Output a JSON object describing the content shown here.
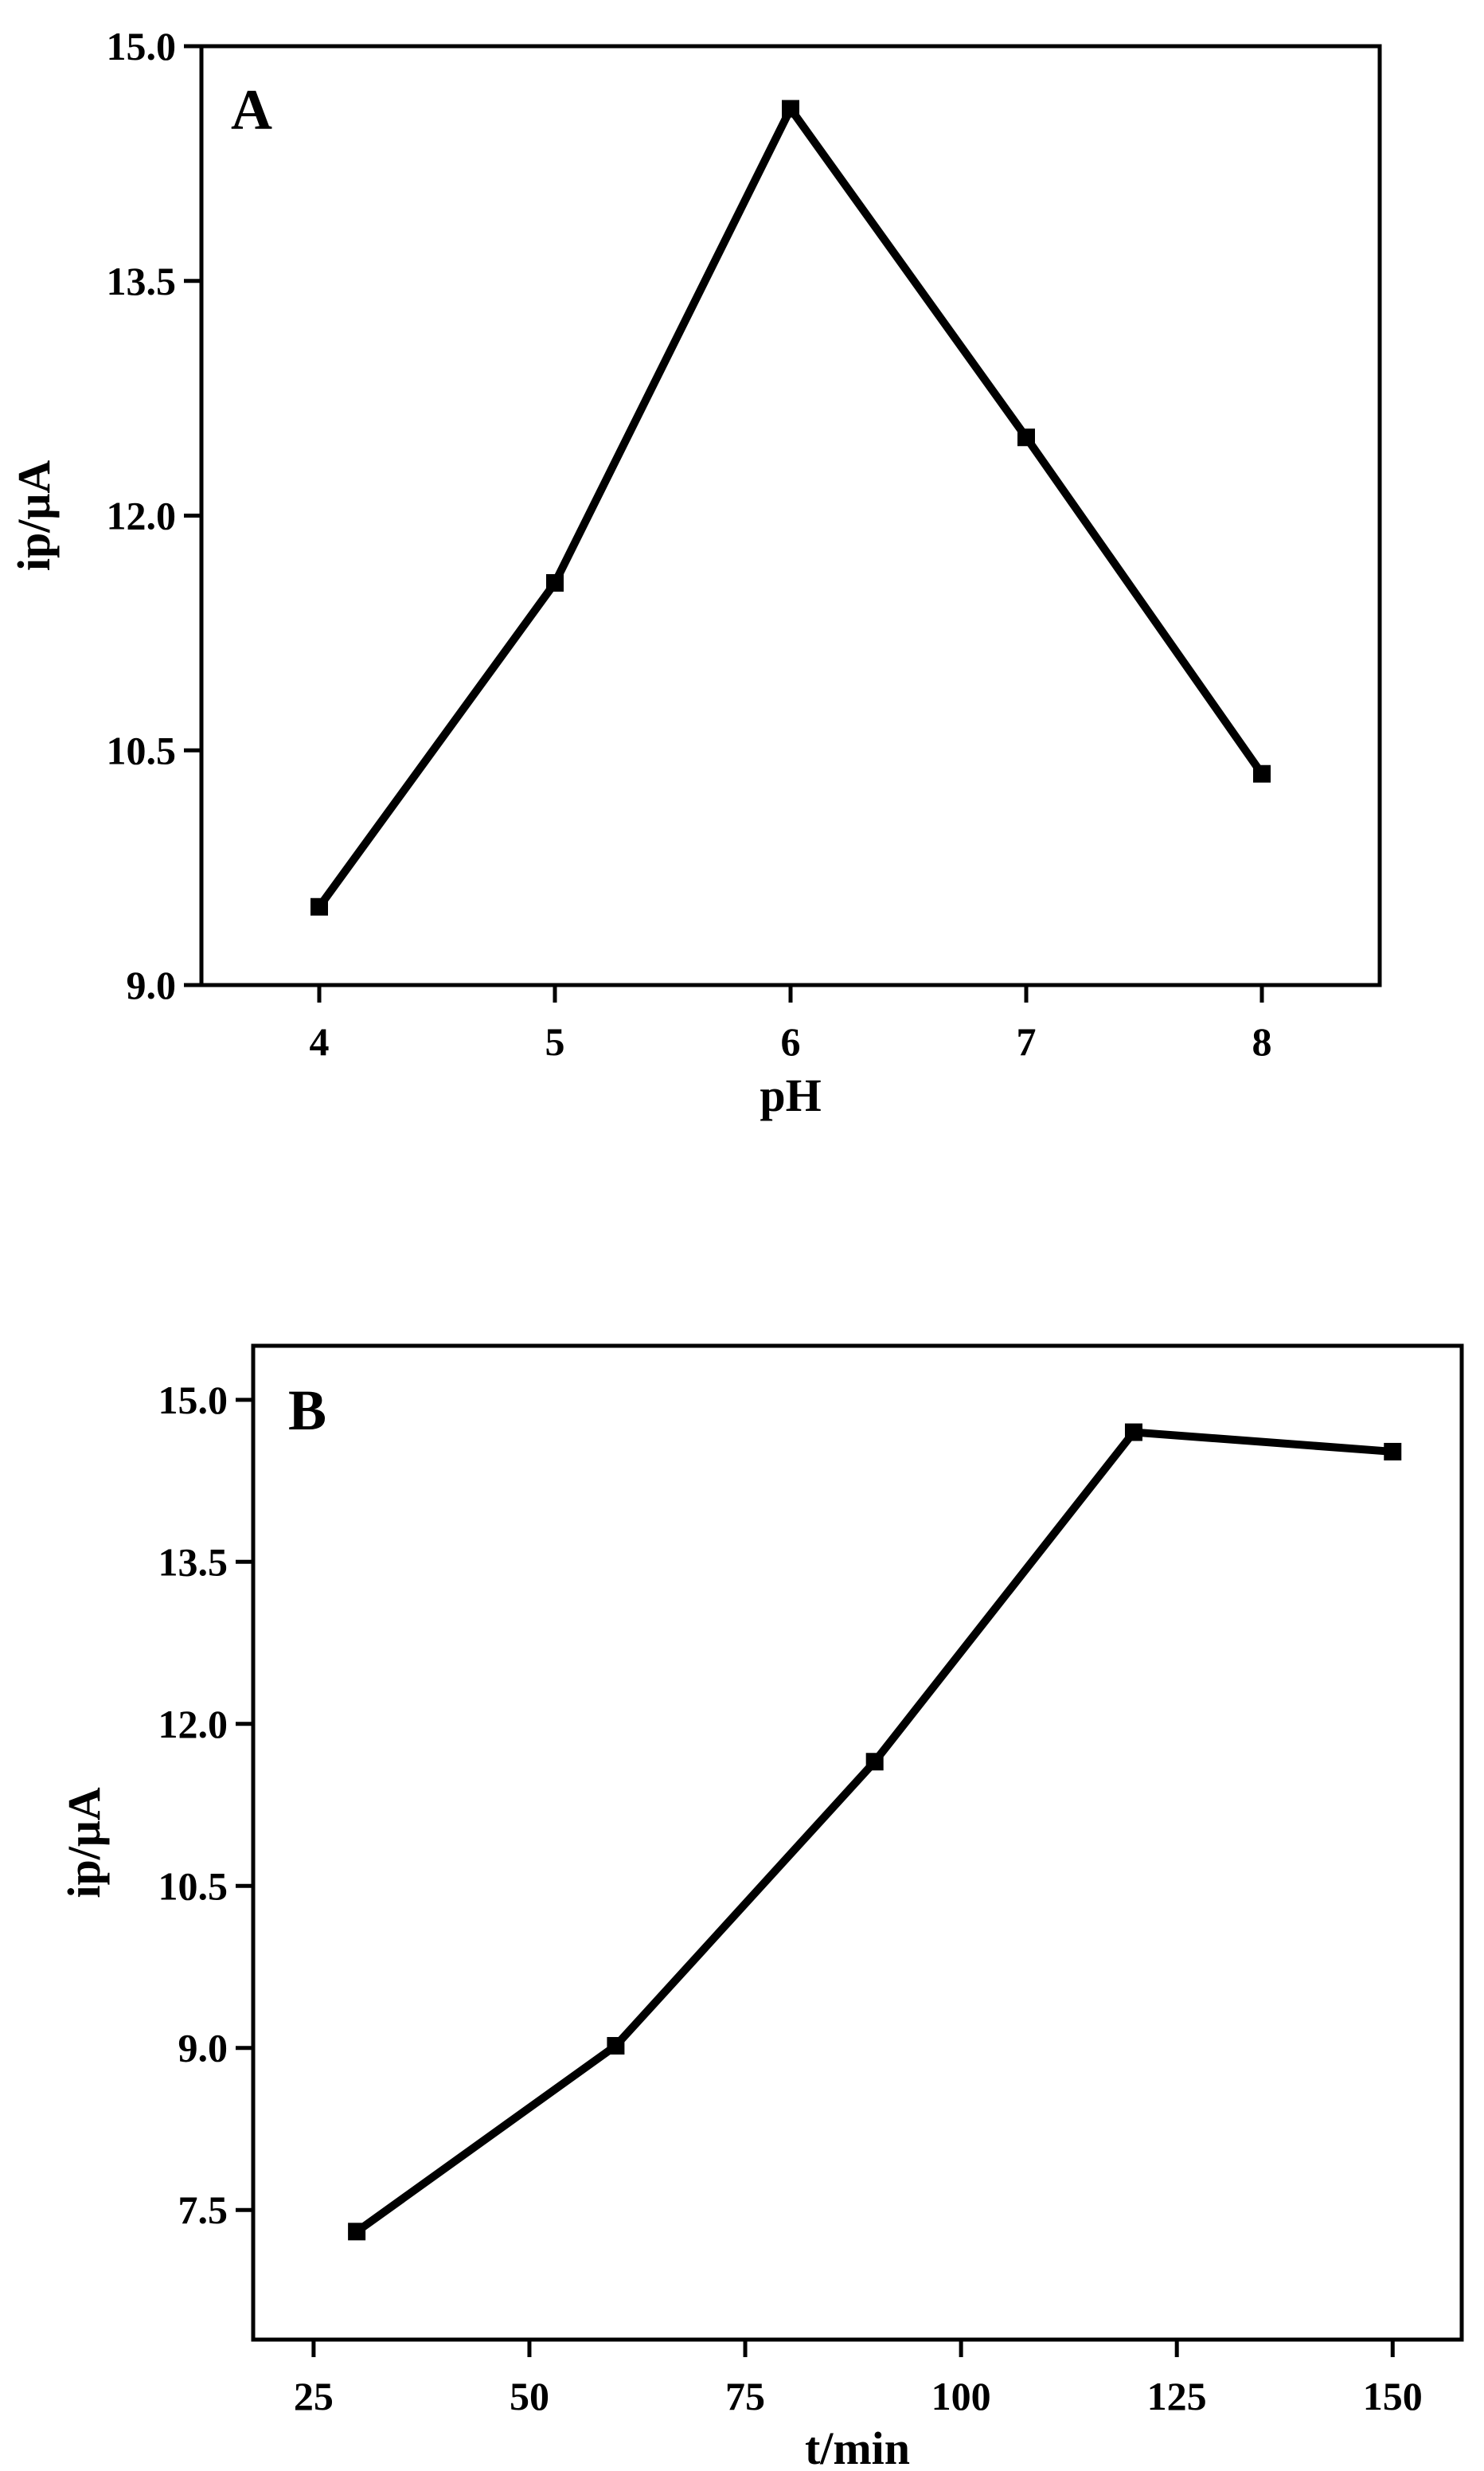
{
  "chart_data": [
    {
      "type": "line",
      "panel_label": "A",
      "xlabel": "pH",
      "ylabel": "ip/μA",
      "x": [
        4,
        5,
        6,
        7,
        8
      ],
      "series": [
        {
          "values": [
            9.5,
            11.57,
            14.6,
            12.5,
            10.35
          ]
        }
      ],
      "xticks": [
        "4",
        "5",
        "6",
        "7",
        "8"
      ],
      "yticks": [
        "9.0",
        "10.5",
        "12.0",
        "13.5",
        "15.0"
      ],
      "xlim": [
        3.5,
        8.5
      ],
      "ylim": [
        9.0,
        15.0
      ],
      "grid": false,
      "marker": "square",
      "color": "#000000"
    },
    {
      "type": "line",
      "panel_label": "B",
      "xlabel": "t/min",
      "ylabel": "ip/μA",
      "x": [
        30,
        60,
        90,
        120,
        150
      ],
      "series": [
        {
          "values": [
            7.3,
            9.02,
            11.65,
            14.7,
            14.52
          ]
        }
      ],
      "xticks": [
        "25",
        "50",
        "75",
        "100",
        "125",
        "150"
      ],
      "yticks": [
        "7.5",
        "9.0",
        "10.5",
        "12.0",
        "13.5",
        "15.0"
      ],
      "xlim": [
        18,
        158
      ],
      "ylim": [
        6.3,
        15.5
      ],
      "grid": false,
      "marker": "square",
      "color": "#000000"
    }
  ]
}
